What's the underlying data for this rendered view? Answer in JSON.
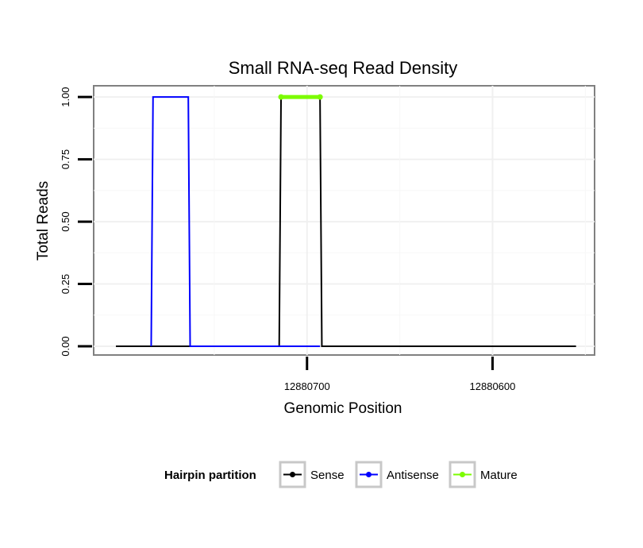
{
  "chart_data": {
    "type": "line",
    "title": "Small RNA-seq Read Density",
    "xlabel": "Genomic Position",
    "ylabel": "Total Reads",
    "x_reversed": true,
    "xlim": [
      12880815,
      12880545
    ],
    "ylim": [
      -0.035,
      1.045
    ],
    "x_ticks": [
      {
        "value": 12880700,
        "label": "12880700"
      },
      {
        "value": 12880600,
        "label": "12880600"
      }
    ],
    "y_ticks": [
      {
        "value": 0.0,
        "label": "0.00"
      },
      {
        "value": 0.25,
        "label": "0.25"
      },
      {
        "value": 0.5,
        "label": "0.50"
      },
      {
        "value": 0.75,
        "label": "0.75"
      },
      {
        "value": 1.0,
        "label": "1.00"
      }
    ],
    "grid": true,
    "legend": {
      "title": "Hairpin partition",
      "position": "bottom",
      "entries": [
        "Sense",
        "Antisense",
        "Mature"
      ]
    },
    "series": [
      {
        "name": "Sense",
        "color": "#000000",
        "x": [
          12880803,
          12880715,
          12880714,
          12880693,
          12880692,
          12880555
        ],
        "y": [
          0,
          0,
          1,
          1,
          0,
          0
        ]
      },
      {
        "name": "Antisense",
        "color": "#0000ff",
        "x": [
          12880784,
          12880783,
          12880764,
          12880763,
          12880715,
          12880693
        ],
        "y": [
          0,
          1,
          1,
          0,
          0,
          0
        ]
      },
      {
        "name": "Mature",
        "color": "#7cfc00",
        "x": [
          12880714,
          12880693
        ],
        "y": [
          1,
          1
        ]
      }
    ]
  }
}
